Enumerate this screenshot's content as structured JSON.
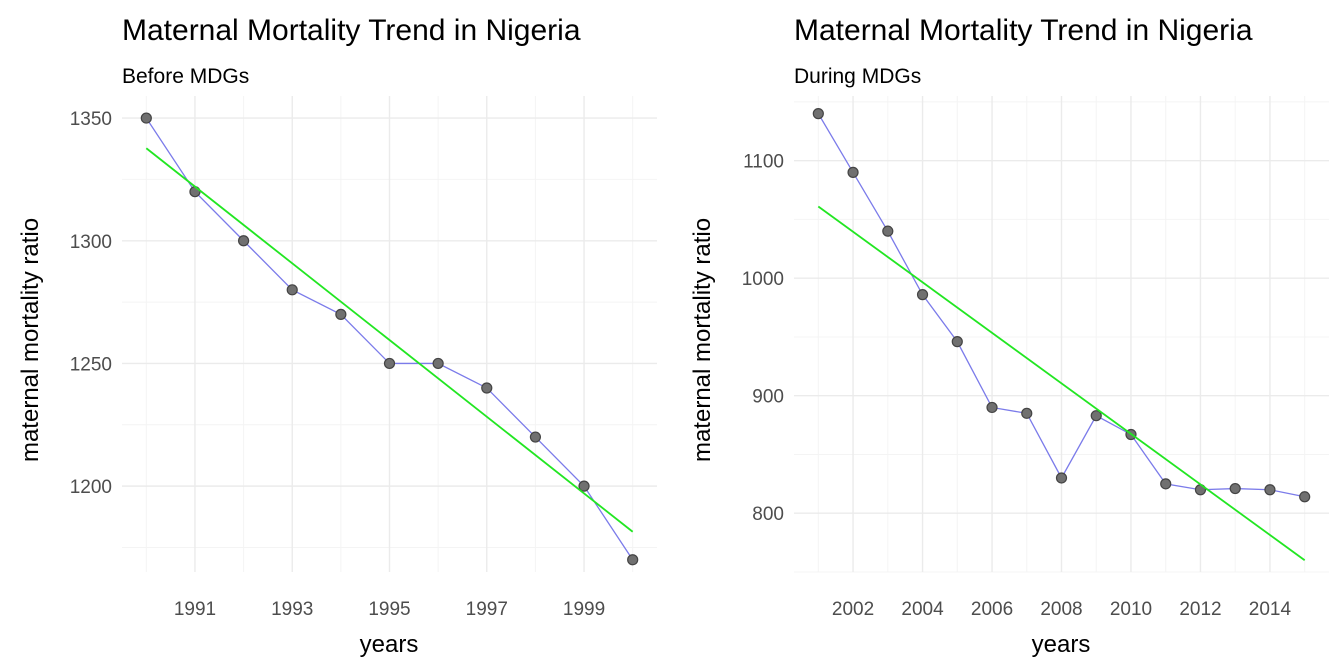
{
  "chart_data": [
    {
      "type": "line",
      "title": "Maternal Mortality Trend in Nigeria",
      "subtitle": "Before MDGs",
      "xlabel": "years",
      "ylabel": "maternal mortality ratio",
      "xticks": [
        "1991",
        "1993",
        "1995",
        "1997",
        "1999"
      ],
      "yticks": [
        "1200",
        "1250",
        "1300",
        "1350"
      ],
      "xlim": [
        1989.5,
        2000.5
      ],
      "ylim": [
        1165,
        1359
      ],
      "grid": true,
      "series": [
        {
          "x": [
            1990,
            1991,
            1992,
            1993,
            1994,
            1995,
            1996,
            1997,
            1998,
            1999,
            2000
          ],
          "values": [
            1350,
            1320,
            1300,
            1280,
            1270,
            1250,
            1250,
            1240,
            1220,
            1200,
            1170
          ]
        }
      ],
      "trend_line": {
        "x": [
          1990,
          2000
        ],
        "y": [
          1337.7,
          1181.4
        ]
      },
      "colors": {
        "line": "#7b7bea",
        "point_fill": "#707070",
        "point_stroke": "#444444",
        "trend": "#22e622"
      }
    },
    {
      "type": "line",
      "title": "Maternal Mortality Trend in Nigeria",
      "subtitle": "During MDGs",
      "xlabel": "years",
      "ylabel": "maternal mortality ratio",
      "xticks": [
        "2002",
        "2004",
        "2006",
        "2008",
        "2010",
        "2012",
        "2014"
      ],
      "yticks": [
        "800",
        "900",
        "1000",
        "1100"
      ],
      "xlim": [
        2000.3,
        2015.7
      ],
      "ylim": [
        750,
        1155
      ],
      "grid": true,
      "series": [
        {
          "x": [
            2001,
            2002,
            2003,
            2004,
            2005,
            2006,
            2007,
            2008,
            2009,
            2010,
            2011,
            2012,
            2013,
            2014,
            2015
          ],
          "values": [
            1140,
            1090,
            1040,
            986,
            946,
            890,
            885,
            830,
            883,
            867,
            825,
            820,
            821,
            820,
            814
          ]
        }
      ],
      "trend_line": {
        "x": [
          2001,
          2015
        ],
        "y": [
          1061,
          760
        ]
      },
      "colors": {
        "line": "#7b7bea",
        "point_fill": "#707070",
        "point_stroke": "#444444",
        "trend": "#22e622"
      }
    }
  ]
}
